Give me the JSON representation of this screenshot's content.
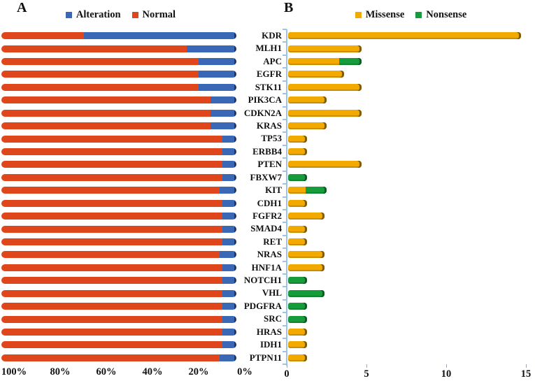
{
  "figure": {
    "background": "#ffffff",
    "axis_line_color": "#9dc3e6",
    "bottom_tick_color": "#9aa7b8"
  },
  "chart_data": [
    {
      "id": "panel_a",
      "title": "A",
      "type": "bar",
      "orientation": "horizontal",
      "stacked": true,
      "unit": "%",
      "x_axis": {
        "ticks": [
          "100%",
          "80%",
          "60%",
          "40%",
          "20%",
          "0%"
        ],
        "range": [
          100,
          0
        ],
        "reversed": true,
        "grid": false
      },
      "legend_position": "top",
      "categories": [
        "KDR",
        "MLH1",
        "APC",
        "EGFR",
        "STK11",
        "PIK3CA",
        "CDKN2A",
        "KRAS",
        "TP53",
        "ERBB4",
        "PTEN",
        "FBXW7",
        "KIT",
        "CDH1",
        "FGFR2",
        "SMAD4",
        "RET",
        "NRAS",
        "HNF1A",
        "NOTCH1",
        "VHL",
        "PDGFRA",
        "SRC",
        "HRAS",
        "IDH1",
        "PTPN11"
      ],
      "series": [
        {
          "name": "Alteration",
          "color": "#3a68b7",
          "cap_color": "#1f3864",
          "values": [
            65,
            21,
            16,
            16,
            16,
            11,
            11,
            11,
            6,
            6,
            6,
            6,
            7,
            6,
            6,
            6,
            6,
            7,
            6,
            6,
            6,
            6,
            6,
            6,
            6,
            7
          ]
        },
        {
          "name": "Normal",
          "color": "#e0461b",
          "values": [
            35,
            79,
            84,
            84,
            84,
            89,
            89,
            89,
            94,
            94,
            94,
            94,
            93,
            94,
            94,
            94,
            94,
            93,
            94,
            94,
            94,
            94,
            94,
            94,
            94,
            93
          ]
        }
      ]
    },
    {
      "id": "panel_b",
      "title": "B",
      "type": "bar",
      "orientation": "horizontal",
      "stacked": true,
      "unit": "count",
      "x_axis": {
        "ticks": [
          "0",
          "5",
          "10",
          "15"
        ],
        "range": [
          0,
          15
        ],
        "reversed": false,
        "grid": false
      },
      "legend_position": "top",
      "categories": [
        "KDR",
        "MLH1",
        "APC",
        "EGFR",
        "STK11",
        "PIK3CA",
        "CDKN2A",
        "KRAS",
        "TP53",
        "ERBB4",
        "PTEN",
        "FBXW7",
        "KIT",
        "CDH1",
        "FGFR2",
        "SMAD4",
        "RET",
        "NRAS",
        "HNF1A",
        "NOTCH1",
        "VHL",
        "PDGFRA",
        "SRC",
        "HRAS",
        "IDH1",
        "PTPN11"
      ],
      "series": [
        {
          "name": "Missense",
          "color": "#f2a900",
          "cap_color": "#7f5b04",
          "values": [
            14.6,
            4.6,
            3.2,
            3.5,
            4.6,
            2.4,
            4.6,
            2.4,
            1.2,
            1.2,
            4.6,
            0,
            1.1,
            1.2,
            2.3,
            1.2,
            1.2,
            2.3,
            2.3,
            0,
            0,
            0,
            0,
            1.2,
            1.2,
            1.2
          ]
        },
        {
          "name": "Nonsense",
          "color": "#179c3b",
          "cap_color": "#0b5e22",
          "values": [
            0,
            0,
            1.4,
            0,
            0,
            0,
            0,
            0,
            0,
            0,
            0,
            1.2,
            1.3,
            0,
            0,
            0,
            0,
            0,
            0,
            1.2,
            2.3,
            1.2,
            1.2,
            0,
            0,
            0
          ]
        }
      ]
    }
  ]
}
